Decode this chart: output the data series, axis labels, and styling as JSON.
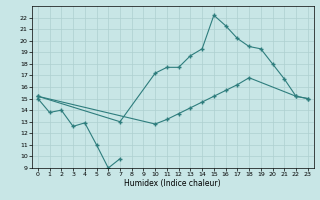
{
  "xlabel": "Humidex (Indice chaleur)",
  "xlim": [
    -0.5,
    23.5
  ],
  "ylim": [
    9,
    23
  ],
  "yticks": [
    9,
    10,
    11,
    12,
    13,
    14,
    15,
    16,
    17,
    18,
    19,
    20,
    21,
    22
  ],
  "xticks": [
    0,
    1,
    2,
    3,
    4,
    5,
    6,
    7,
    8,
    9,
    10,
    11,
    12,
    13,
    14,
    15,
    16,
    17,
    18,
    19,
    20,
    21,
    22,
    23
  ],
  "bg_color": "#c8e6e6",
  "line_color": "#2e7d7d",
  "grid_color": "#aed0d0",
  "line1_x": [
    0,
    1,
    2,
    3,
    4,
    5,
    6,
    7
  ],
  "line1_y": [
    15.0,
    13.8,
    14.0,
    12.6,
    12.9,
    11.0,
    9.0,
    9.8
  ],
  "line2_x": [
    0,
    7,
    10,
    11,
    12,
    13,
    14,
    15,
    16,
    17,
    18,
    19,
    20,
    21,
    22,
    23
  ],
  "line2_y": [
    15.2,
    13.0,
    17.2,
    17.7,
    17.7,
    18.7,
    19.3,
    22.2,
    21.3,
    20.2,
    19.5,
    19.3,
    18.0,
    16.7,
    15.2,
    15.0
  ],
  "line3_x": [
    0,
    10,
    11,
    12,
    13,
    14,
    15,
    16,
    17,
    18,
    22,
    23
  ],
  "line3_y": [
    15.2,
    12.8,
    13.2,
    13.7,
    14.2,
    14.7,
    15.2,
    15.7,
    16.2,
    16.8,
    15.2,
    15.0
  ]
}
